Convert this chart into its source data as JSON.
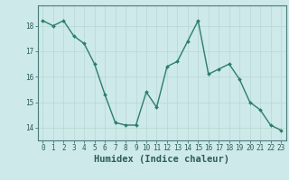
{
  "x": [
    0,
    1,
    2,
    3,
    4,
    5,
    6,
    7,
    8,
    9,
    10,
    11,
    12,
    13,
    14,
    15,
    16,
    17,
    18,
    19,
    20,
    21,
    22,
    23
  ],
  "y": [
    18.2,
    18.0,
    18.2,
    17.6,
    17.3,
    16.5,
    15.3,
    14.2,
    14.1,
    14.1,
    15.4,
    14.8,
    16.4,
    16.6,
    17.4,
    18.2,
    16.1,
    16.3,
    16.5,
    15.9,
    15.0,
    14.7,
    14.1,
    13.9
  ],
  "line_color": "#2d7d6e",
  "marker": "D",
  "marker_size": 2.0,
  "bg_color": "#cde9e9",
  "grid_color_major": "#b8d8d0",
  "grid_color_minor": "#c8e2dc",
  "xlabel": "Humidex (Indice chaleur)",
  "ylim": [
    13.5,
    18.8
  ],
  "xlim": [
    -0.5,
    23.5
  ],
  "yticks": [
    14,
    15,
    16,
    17,
    18
  ],
  "xticks": [
    0,
    1,
    2,
    3,
    4,
    5,
    6,
    7,
    8,
    9,
    10,
    11,
    12,
    13,
    14,
    15,
    16,
    17,
    18,
    19,
    20,
    21,
    22,
    23
  ],
  "tick_color": "#2d5c5c",
  "spine_color": "#4a7a7a",
  "xlabel_fontsize": 7.5,
  "tick_fontsize": 5.5,
  "linewidth": 1.0
}
